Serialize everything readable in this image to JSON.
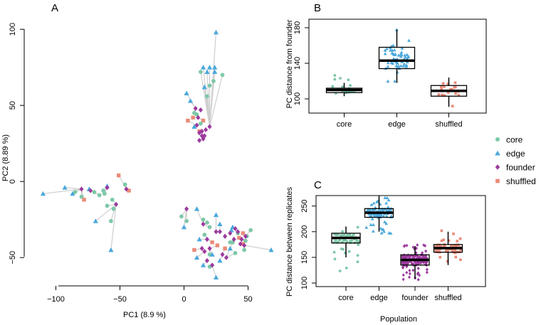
{
  "colors": {
    "core": "#7dc8a8",
    "edge": "#4aa8dc",
    "founder": "#9b3a9e",
    "shuffled": "#eb8a78"
  },
  "legend": [
    {
      "key": "core",
      "label": "core",
      "shape": "circle"
    },
    {
      "key": "edge",
      "label": "edge",
      "shape": "triangle"
    },
    {
      "key": "founder",
      "label": "founder",
      "shape": "diamond"
    },
    {
      "key": "shuffled",
      "label": "shuffled",
      "shape": "square"
    }
  ],
  "chart_data": [
    {
      "panel": "A",
      "type": "scatter",
      "xlabel": "PC1 (8.9 %)",
      "ylabel": "PC2 (8.89 %)",
      "xlim": [
        -118,
        72
      ],
      "ylim": [
        -70,
        106
      ],
      "xticks": [
        -100,
        -50,
        0,
        50
      ],
      "yticks": [
        -50,
        0,
        50,
        100
      ],
      "tick_labels_x": [
        "−100",
        "−50",
        "0",
        "50"
      ],
      "tick_labels_y": [
        "−50",
        "0",
        "50",
        "100"
      ],
      "clusters": [
        {
          "founder": [
            [
              -60,
              -4
            ],
            [
              -73,
              -6
            ],
            [
              -80,
              -5
            ]
          ],
          "others": [
            [
              "edge",
              -110,
              -8
            ],
            [
              "edge",
              -93,
              -4
            ],
            [
              "core",
              -85,
              -7
            ],
            [
              "edge",
              -87,
              -8
            ],
            [
              "core",
              -80,
              -10
            ],
            [
              "shuffled",
              -78,
              -12
            ],
            [
              "edge",
              -74,
              -5
            ],
            [
              "core",
              -70,
              -7
            ],
            [
              "core",
              -66,
              -9
            ],
            [
              "core",
              -63,
              -6
            ],
            [
              "edge",
              -60,
              -3
            ],
            [
              "core",
              -62,
              -8
            ]
          ]
        },
        {
          "founder": [
            [
              -53,
              -15
            ]
          ],
          "others": [
            [
              "core",
              -56,
              -12
            ],
            [
              "core",
              -60,
              -16
            ],
            [
              "edge",
              -69,
              -26
            ],
            [
              "core",
              -57,
              -26
            ],
            [
              "edge",
              -57,
              -45
            ],
            [
              "core",
              -55,
              -18
            ]
          ]
        },
        {
          "founder": [
            [
              -45,
              -5
            ]
          ],
          "others": [
            [
              "shuffled",
              -51,
              4
            ],
            [
              "shuffled",
              -43,
              -6
            ],
            [
              "core",
              -46,
              -2
            ]
          ]
        },
        {
          "founder": [
            [
              12,
              27
            ],
            [
              14,
              30
            ],
            [
              17,
              34
            ],
            [
              16,
              30
            ],
            [
              15,
              28
            ],
            [
              20,
              36
            ]
          ],
          "others": [
            [
              "edge",
              25,
              98
            ],
            [
              "edge",
              20,
              75
            ],
            [
              "edge",
              15,
              75
            ],
            [
              "core",
              13,
              72
            ],
            [
              "edge",
              18,
              72
            ],
            [
              "edge",
              24,
              72
            ],
            [
              "core",
              23,
              66
            ],
            [
              "core",
              30,
              70
            ],
            [
              "edge",
              16,
              62
            ],
            [
              "core",
              18,
              56
            ],
            [
              "core",
              20,
              63
            ],
            [
              "edge",
              24,
              75
            ]
          ]
        },
        {
          "founder": [
            [
              9,
              48
            ],
            [
              13,
              47
            ],
            [
              11,
              42
            ],
            [
              10,
              37
            ],
            [
              14,
              33
            ],
            [
              12,
              32
            ]
          ],
          "others": [
            [
              "edge",
              2,
              58
            ],
            [
              "edge",
              5,
              53
            ],
            [
              "core",
              8,
              45
            ],
            [
              "core",
              10,
              44
            ],
            [
              "shuffled",
              7,
              42
            ],
            [
              "shuffled",
              15,
              40
            ],
            [
              "shuffled",
              3,
              40
            ],
            [
              "shuffled",
              12,
              33
            ],
            [
              "edge",
              8,
              36
            ],
            [
              "core",
              13,
              38
            ]
          ]
        },
        {
          "founder": [
            [
              15,
              -28
            ],
            [
              18,
              -38
            ],
            [
              25,
              -33
            ],
            [
              28,
              -33
            ],
            [
              20,
              -44
            ],
            [
              32,
              -36
            ]
          ],
          "others": [
            [
              "edge",
              10,
              -18
            ],
            [
              "core",
              15,
              -25
            ],
            [
              "core",
              18,
              -27
            ],
            [
              "edge",
              25,
              -22
            ],
            [
              "edge",
              28,
              -28
            ],
            [
              "core",
              20,
              -30
            ],
            [
              "edge",
              12,
              -38
            ],
            [
              "core",
              16,
              -35
            ],
            [
              "shuffled",
              22,
              -40
            ],
            [
              "core",
              20,
              -48
            ],
            [
              "edge",
              22,
              -48
            ],
            [
              "shuffled",
              26,
              -42
            ]
          ]
        },
        {
          "founder": [
            [
              16,
              -46
            ],
            [
              18,
              -52
            ],
            [
              22,
              -55
            ],
            [
              30,
              -48
            ],
            [
              33,
              -50
            ],
            [
              14,
              -44
            ]
          ],
          "others": [
            [
              "shuffled",
              8,
              -45
            ],
            [
              "edge",
              10,
              -50
            ],
            [
              "edge",
              15,
              -55
            ],
            [
              "edge",
              25,
              -63
            ],
            [
              "core",
              20,
              -56
            ],
            [
              "edge",
              36,
              -44
            ],
            [
              "core",
              40,
              -47
            ],
            [
              "shuffled",
              32,
              -44
            ],
            [
              "core",
              38,
              -40
            ],
            [
              "edge",
              28,
              -52
            ]
          ]
        },
        {
          "founder": [
            [
              40,
              -31
            ],
            [
              45,
              -38
            ],
            [
              47,
              -42
            ],
            [
              42,
              -33
            ],
            [
              48,
              -36
            ],
            [
              36,
              -34
            ],
            [
              44,
              -41
            ],
            [
              39,
              -38
            ]
          ],
          "others": [
            [
              "core",
              52,
              -32
            ],
            [
              "shuffled",
              46,
              -34
            ],
            [
              "edge",
              68,
              -45
            ],
            [
              "edge",
              38,
              -30
            ],
            [
              "core",
              42,
              -34
            ],
            [
              "core",
              48,
              -39
            ],
            [
              "shuffled",
              43,
              -37
            ],
            [
              "shuffled",
              46,
              -41
            ],
            [
              "core",
              49,
              -36
            ],
            [
              "core",
              47,
              -45
            ],
            [
              "edge",
              37,
              -32
            ],
            [
              "core",
              36,
              -40
            ]
          ]
        },
        {
          "founder": [
            [
              2,
              -18
            ]
          ],
          "others": [
            [
              "core",
              -2,
              -23
            ],
            [
              "core",
              2,
              -26
            ],
            [
              "edge",
              0,
              -30
            ]
          ]
        }
      ]
    },
    {
      "panel": "B",
      "type": "box",
      "ylabel": "PC distance from founder",
      "categories": [
        "core",
        "edge",
        "shuffled"
      ],
      "ylim": [
        90,
        182
      ],
      "yticks": [
        100,
        140,
        180
      ],
      "boxes": [
        {
          "q1": 107,
          "median": 110,
          "q3": 112,
          "whisker_low": 103,
          "whisker_high": 118
        },
        {
          "q1": 134,
          "median": 143,
          "q3": 158,
          "whisker_low": 118,
          "whisker_high": 178
        },
        {
          "q1": 103,
          "median": 109,
          "q3": 115,
          "whisker_low": 91,
          "whisker_high": 124
        }
      ],
      "points": [
        {
          "n": 20,
          "min": 101,
          "max": 131
        },
        {
          "n": 55,
          "min": 118,
          "max": 178
        },
        {
          "n": 18,
          "min": 91,
          "max": 124
        }
      ]
    },
    {
      "panel": "C",
      "type": "box",
      "ylabel": "PC distance between replicates",
      "xlabel": "Population",
      "categories": [
        "core",
        "edge",
        "founder",
        "shuffled"
      ],
      "ylim": [
        100,
        275
      ],
      "yticks": [
        100,
        150,
        200,
        250
      ],
      "boxes": [
        {
          "q1": 178,
          "median": 188,
          "q3": 197,
          "whisker_low": 150,
          "whisker_high": 210
        },
        {
          "q1": 228,
          "median": 237,
          "q3": 245,
          "whisker_low": 200,
          "whisker_high": 270
        },
        {
          "q1": 135,
          "median": 145,
          "q3": 155,
          "whisker_low": 108,
          "whisker_high": 172
        },
        {
          "q1": 160,
          "median": 168,
          "q3": 175,
          "whisker_low": 135,
          "whisker_high": 200
        }
      ],
      "points": [
        {
          "n": 60,
          "min": 122,
          "max": 212
        },
        {
          "n": 90,
          "min": 196,
          "max": 274
        },
        {
          "n": 160,
          "min": 106,
          "max": 177
        },
        {
          "n": 60,
          "min": 140,
          "max": 203
        }
      ]
    }
  ]
}
